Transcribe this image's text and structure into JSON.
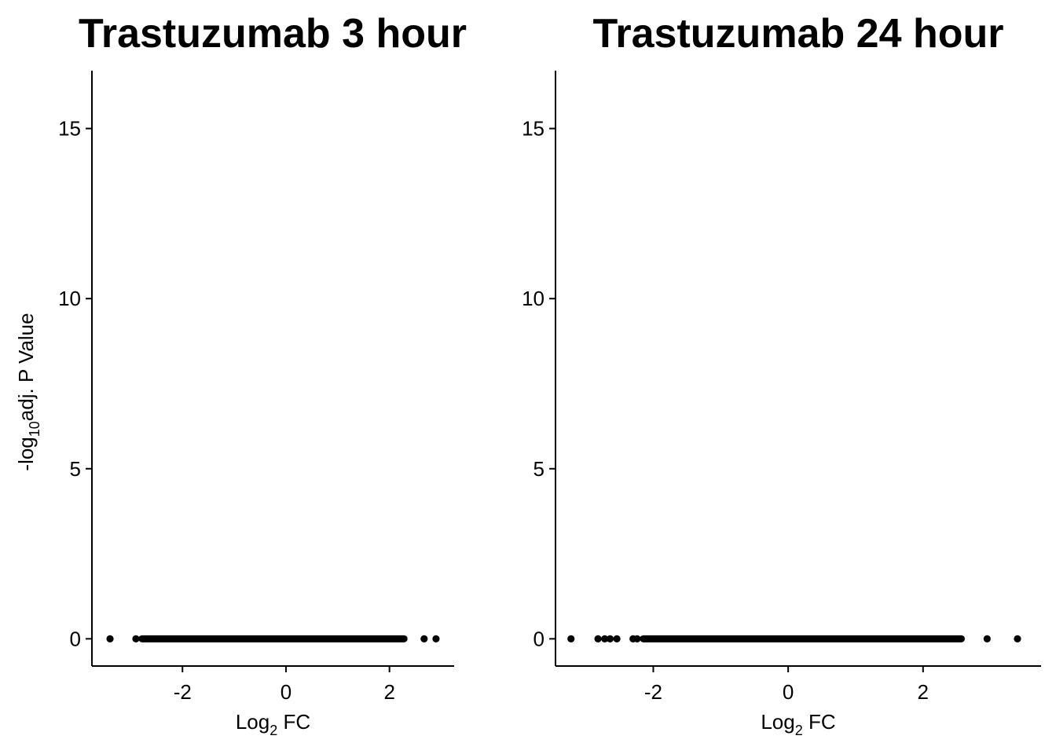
{
  "chart_data": [
    {
      "type": "scatter",
      "title": "Trastuzumab 3 hour",
      "xlabel": {
        "base": "Log",
        "sub": "2",
        "rest": " FC"
      },
      "ylabel": {
        "base": "-log",
        "sub": "10",
        "rest": "adj. P Value"
      },
      "xlim": [
        -3.75,
        3.25
      ],
      "ylim": [
        -0.8,
        16.7
      ],
      "xticks": [
        -2,
        0,
        2
      ],
      "yticks": [
        0,
        5,
        10,
        15
      ],
      "xtick_labels": [
        "-2",
        "0",
        "2"
      ],
      "ytick_labels": [
        "0",
        "5",
        "10",
        "15"
      ],
      "grid": false,
      "points": [
        {
          "x": -3.4,
          "y": 0
        },
        {
          "x": -2.9,
          "y": 0
        },
        {
          "x": 2.67,
          "y": 0
        },
        {
          "x": 2.9,
          "y": 0
        }
      ],
      "dense_band": {
        "x_min": -2.85,
        "x_max": 2.35,
        "y": 0
      }
    },
    {
      "type": "scatter",
      "title": "Trastuzumab 24 hour",
      "xlabel": {
        "base": "Log",
        "sub": "2",
        "rest": " FC"
      },
      "ylabel": {
        "base": "",
        "sub": "",
        "rest": ""
      },
      "xlim": [
        -3.45,
        3.75
      ],
      "ylim": [
        -0.8,
        16.7
      ],
      "xticks": [
        -2,
        0,
        2
      ],
      "yticks": [
        0,
        5,
        10,
        15
      ],
      "xtick_labels": [
        "-2",
        "0",
        "2"
      ],
      "ytick_labels": [
        "0",
        "5",
        "10",
        "15"
      ],
      "grid": false,
      "points": [
        {
          "x": -3.22,
          "y": 0
        },
        {
          "x": -2.82,
          "y": 0
        },
        {
          "x": -2.72,
          "y": 0
        },
        {
          "x": -2.64,
          "y": 0
        },
        {
          "x": -2.54,
          "y": 0
        },
        {
          "x": -2.3,
          "y": 0
        },
        {
          "x": -2.24,
          "y": 0
        },
        {
          "x": 2.95,
          "y": 0
        },
        {
          "x": 3.4,
          "y": 0
        }
      ],
      "dense_band": {
        "x_min": -2.2,
        "x_max": 2.62,
        "y": 0
      }
    }
  ]
}
